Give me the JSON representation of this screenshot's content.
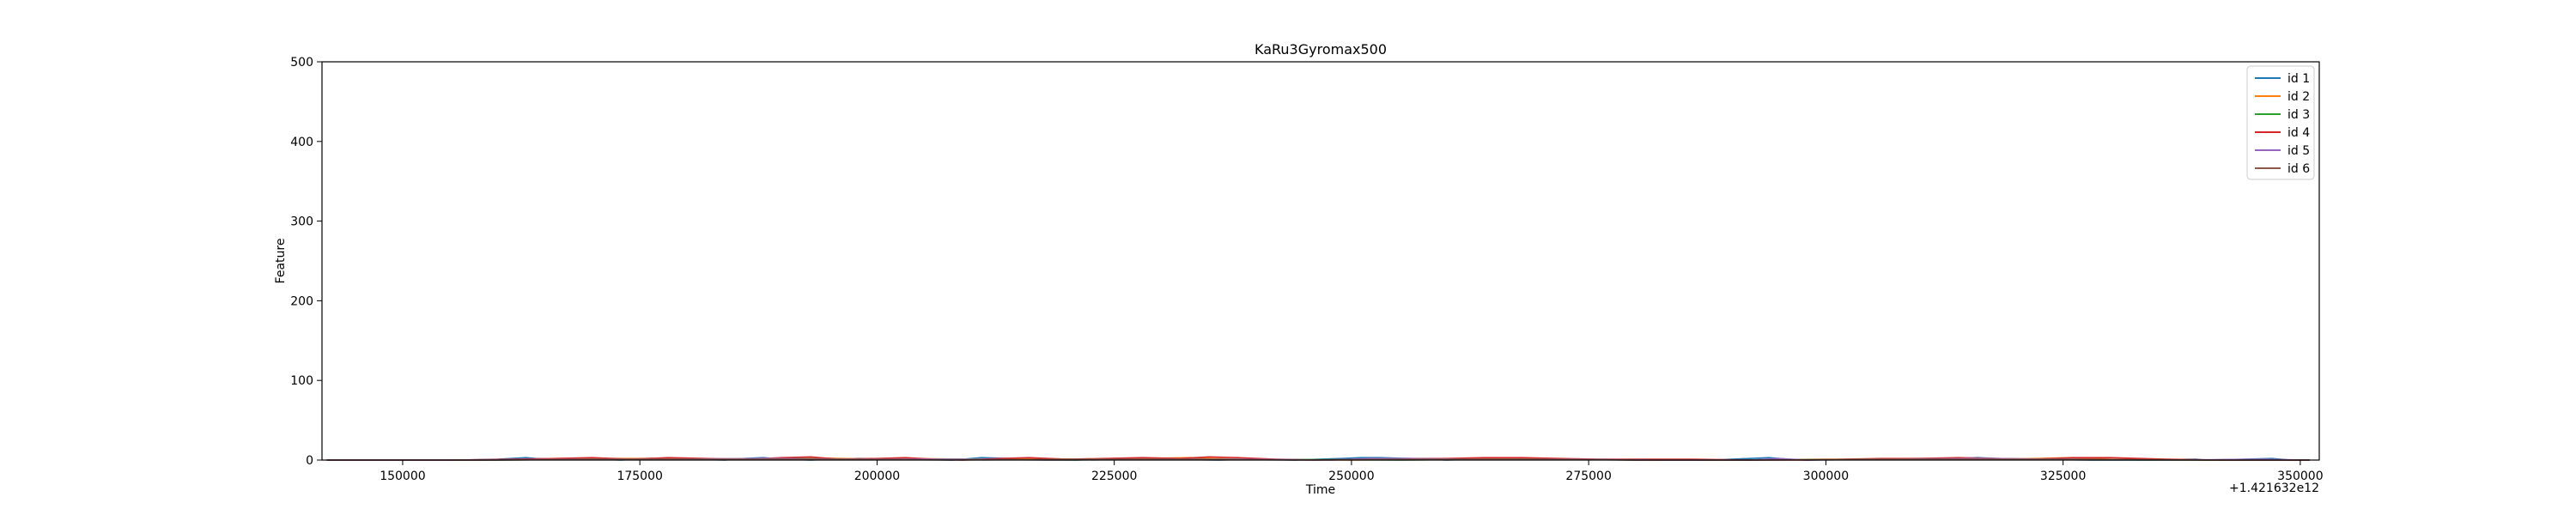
{
  "chart_data": {
    "type": "line",
    "title": "KaRu3Gyromax500",
    "xlabel": "Time",
    "ylabel": "Feature",
    "x_offset_label": "+1.421632e12",
    "xlim": [
      141500,
      352000
    ],
    "ylim": [
      0,
      500
    ],
    "x_ticks": [
      150000,
      175000,
      200000,
      225000,
      250000,
      275000,
      300000,
      325000,
      350000
    ],
    "y_ticks": [
      0,
      100,
      200,
      300,
      400,
      500
    ],
    "grid": false,
    "legend_position": "top-right",
    "series": [
      {
        "name": "id 1",
        "color": "#1f77b4",
        "x": [
          142000,
          156000,
          160000,
          163000,
          164000,
          166000,
          168000,
          173000,
          176000,
          180000,
          184000,
          186000,
          188000,
          190000,
          193000,
          198000,
          203000,
          208000,
          211000,
          214000,
          218000,
          221000,
          225000,
          230000,
          236000,
          240000,
          244000,
          249000,
          251000,
          253000,
          256000,
          260000,
          266000,
          272000,
          280000,
          288000,
          294000,
          296000,
          298000,
          304000,
          310000,
          314000,
          316000,
          318000,
          322000,
          328000,
          334000,
          339000,
          340000,
          344000,
          347000,
          349000,
          351000
        ],
        "y": [
          0,
          0,
          1,
          3,
          2,
          1,
          2,
          0,
          2,
          1,
          0,
          2,
          3,
          1,
          0,
          2,
          1,
          0,
          3,
          2,
          1,
          0,
          2,
          1,
          0,
          1,
          0,
          2,
          3,
          3,
          2,
          0,
          2,
          1,
          0,
          0,
          3,
          1,
          0,
          1,
          2,
          2,
          3,
          2,
          1,
          0,
          0,
          1,
          0,
          1,
          2,
          0,
          0
        ]
      },
      {
        "name": "id 2",
        "color": "#ff7f0e",
        "x": [
          142000,
          158000,
          165000,
          170000,
          176000,
          180000,
          189000,
          192000,
          200000,
          203000,
          210000,
          215000,
          222000,
          228000,
          233000,
          238000,
          250000,
          258000,
          262000,
          268000,
          272000,
          280000,
          290000,
          300000,
          305000,
          312000,
          318000,
          322000,
          326000,
          330000,
          340000,
          351000
        ],
        "y": [
          0,
          0,
          1,
          2,
          2,
          1,
          2,
          3,
          1,
          2,
          1,
          2,
          1,
          2,
          3,
          1,
          0,
          1,
          2,
          2,
          1,
          0,
          0,
          1,
          1,
          2,
          1,
          2,
          3,
          1,
          0,
          0
        ]
      },
      {
        "name": "id 3",
        "color": "#2ca02c",
        "x": [
          142000,
          160000,
          170000,
          182000,
          190000,
          200000,
          210000,
          220000,
          230000,
          240000,
          255000,
          265000,
          275000,
          290000,
          305000,
          315000,
          325000,
          335000,
          351000
        ],
        "y": [
          0,
          0,
          1,
          1,
          2,
          1,
          1,
          0,
          1,
          1,
          0,
          1,
          1,
          0,
          1,
          1,
          1,
          0,
          0
        ]
      },
      {
        "name": "id 4",
        "color": "#d62728",
        "x": [
          142000,
          155000,
          162000,
          166000,
          170000,
          174000,
          178000,
          182000,
          186000,
          190000,
          193000,
          196000,
          200000,
          203000,
          206000,
          209000,
          213000,
          216000,
          220000,
          224000,
          228000,
          232000,
          235000,
          238000,
          242000,
          246000,
          252000,
          256000,
          260000,
          264000,
          268000,
          272000,
          276000,
          280000,
          286000,
          292000,
          298000,
          302000,
          306000,
          310000,
          314000,
          318000,
          322000,
          326000,
          330000,
          336000,
          342000,
          351000
        ],
        "y": [
          0,
          0,
          1,
          2,
          3,
          1,
          3,
          2,
          1,
          3,
          4,
          1,
          2,
          3,
          1,
          0,
          2,
          3,
          1,
          2,
          3,
          2,
          4,
          3,
          1,
          0,
          1,
          2,
          2,
          3,
          3,
          2,
          1,
          1,
          1,
          0,
          0,
          1,
          2,
          2,
          3,
          2,
          1,
          3,
          3,
          1,
          0,
          0
        ]
      },
      {
        "name": "id 5",
        "color": "#9467bd",
        "x": [
          142000,
          158000,
          168000,
          178000,
          188000,
          198000,
          208000,
          218000,
          228000,
          238000,
          248000,
          252000,
          256000,
          262000,
          272000,
          282000,
          292000,
          295000,
          298000,
          308000,
          316000,
          326000,
          336000,
          346000,
          351000
        ],
        "y": [
          0,
          0,
          1,
          1,
          2,
          1,
          1,
          0,
          1,
          1,
          0,
          2,
          2,
          1,
          1,
          0,
          0,
          2,
          0,
          1,
          2,
          1,
          0,
          1,
          0
        ]
      },
      {
        "name": "id 6",
        "color": "#8c564b",
        "x": [
          142000,
          160000,
          172000,
          184000,
          196000,
          208000,
          220000,
          232000,
          244000,
          256000,
          268000,
          280000,
          292000,
          304000,
          316000,
          328000,
          340000,
          351000
        ],
        "y": [
          0,
          0,
          1,
          1,
          1,
          0,
          1,
          1,
          0,
          1,
          1,
          0,
          0,
          1,
          1,
          1,
          0,
          0
        ]
      }
    ]
  }
}
